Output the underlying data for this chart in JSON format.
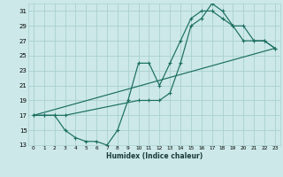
{
  "xlabel": "Humidex (Indice chaleur)",
  "bg_color": "#cce8e8",
  "grid_color": "#aad0d0",
  "line_color": "#1a6e60",
  "xlim": [
    -0.5,
    23.5
  ],
  "ylim": [
    13,
    32
  ],
  "xticks": [
    0,
    1,
    2,
    3,
    4,
    5,
    6,
    7,
    8,
    9,
    10,
    11,
    12,
    13,
    14,
    15,
    16,
    17,
    18,
    19,
    20,
    21,
    22,
    23
  ],
  "yticks": [
    13,
    15,
    17,
    19,
    21,
    23,
    25,
    27,
    29,
    31
  ],
  "line1_x": [
    0,
    1,
    2,
    3,
    4,
    5,
    6,
    7,
    8,
    9,
    10,
    11,
    12,
    13,
    14,
    15,
    16,
    17,
    18,
    19,
    20,
    21,
    22,
    23
  ],
  "line1_y": [
    17,
    17,
    17,
    15,
    14,
    13.5,
    13.5,
    13,
    15,
    19,
    24,
    24,
    21,
    24,
    27,
    30,
    31,
    31,
    30,
    29,
    27,
    27,
    27,
    26
  ],
  "line2_x": [
    0,
    1,
    2,
    3,
    10,
    11,
    12,
    13,
    14,
    15,
    16,
    17,
    18,
    19,
    20,
    21,
    22,
    23
  ],
  "line2_y": [
    17,
    17,
    17,
    17,
    19,
    19,
    19,
    20,
    24,
    29,
    30,
    32,
    31,
    29,
    29,
    27,
    27,
    26
  ],
  "line3_x": [
    0,
    23
  ],
  "line3_y": [
    17,
    26
  ]
}
